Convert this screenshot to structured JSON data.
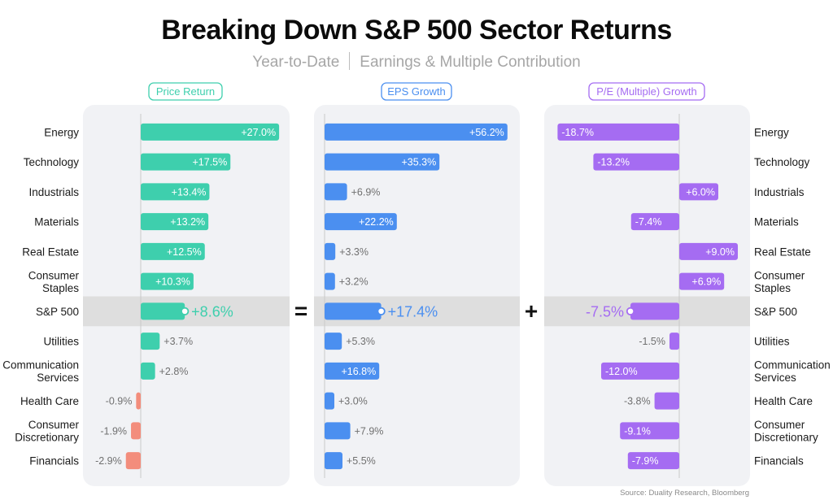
{
  "header": {
    "title": "Breaking Down S&P 500 Sector Returns",
    "subtitle_left": "Year-to-Date",
    "subtitle_right": "Earnings & Multiple Contribution"
  },
  "operators": {
    "equals": "=",
    "plus": "+"
  },
  "source": "Source: Duality Research, Bloomberg",
  "colors": {
    "price": "#3ecfad",
    "eps": "#4b8ff0",
    "pe": "#a56cf2",
    "negative": "#f38d7c",
    "panel": "#f1f2f5",
    "highlight": "#dedede"
  },
  "chart_data": [
    {
      "type": "bar",
      "orientation": "horizontal",
      "title": "Price Return",
      "categories": [
        "Energy",
        "Technology",
        "Industrials",
        "Materials",
        "Real Estate",
        "Consumer Staples",
        "S&P 500",
        "Utilities",
        "Communication Services",
        "Health Care",
        "Consumer Discretionary",
        "Financials"
      ],
      "values": [
        27.0,
        17.5,
        13.4,
        13.2,
        12.5,
        10.3,
        8.6,
        3.7,
        2.8,
        -0.9,
        -1.9,
        -2.9
      ],
      "labels": [
        "+27.0%",
        "+17.5%",
        "+13.4%",
        "+13.2%",
        "+12.5%",
        "+10.3%",
        "+8.6%",
        "+3.7%",
        "+2.8%",
        "-0.9%",
        "-1.9%",
        "-2.9%"
      ],
      "unit": "%"
    },
    {
      "type": "bar",
      "orientation": "horizontal",
      "title": "EPS Growth",
      "categories": [
        "Energy",
        "Technology",
        "Industrials",
        "Materials",
        "Real Estate",
        "Consumer Staples",
        "S&P 500",
        "Utilities",
        "Communication Services",
        "Health Care",
        "Consumer Discretionary",
        "Financials"
      ],
      "values": [
        56.2,
        35.3,
        6.9,
        22.2,
        3.3,
        3.2,
        17.4,
        5.3,
        16.8,
        3.0,
        7.9,
        5.5
      ],
      "labels": [
        "+56.2%",
        "+35.3%",
        "+6.9%",
        "+22.2%",
        "+3.3%",
        "+3.2%",
        "+17.4%",
        "+5.3%",
        "+16.8%",
        "+3.0%",
        "+7.9%",
        "+5.5%"
      ],
      "unit": "%"
    },
    {
      "type": "bar",
      "orientation": "horizontal",
      "title": "P/E (Multiple) Growth",
      "categories": [
        "Energy",
        "Technology",
        "Industrials",
        "Materials",
        "Real Estate",
        "Consumer Staples",
        "S&P 500",
        "Utilities",
        "Communication Services",
        "Health Care",
        "Consumer Discretionary",
        "Financials"
      ],
      "values": [
        -18.7,
        -13.2,
        6.0,
        -7.4,
        9.0,
        6.9,
        -7.5,
        -1.5,
        -12.0,
        -3.8,
        -9.1,
        -7.9
      ],
      "labels": [
        "-18.7%",
        "-13.2%",
        "+6.0%",
        "-7.4%",
        "+9.0%",
        "+6.9%",
        "-7.5%",
        "-1.5%",
        "-12.0%",
        "-3.8%",
        "-9.1%",
        "-7.9%"
      ],
      "unit": "%"
    }
  ],
  "row_labels": [
    [
      "Energy"
    ],
    [
      "Technology"
    ],
    [
      "Industrials"
    ],
    [
      "Materials"
    ],
    [
      "Real Estate"
    ],
    [
      "Consumer",
      "Staples"
    ],
    [
      "S&P 500"
    ],
    [
      "Utilities"
    ],
    [
      "Communication",
      "Services"
    ],
    [
      "Health Care"
    ],
    [
      "Consumer",
      "Discretionary"
    ],
    [
      "Financials"
    ]
  ],
  "highlight_row": "S&P 500"
}
